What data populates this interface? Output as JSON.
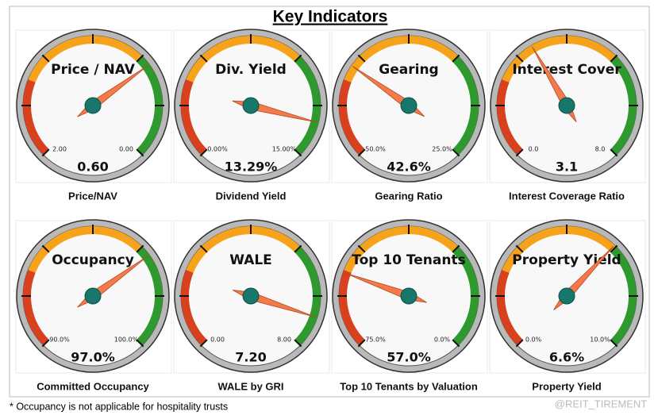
{
  "title": "Key Indicators",
  "footnote": "* Occupancy is not applicable for hospitality trusts",
  "watermark": "@REIT_TIREMENT",
  "chart_data": [
    {
      "type": "gauge",
      "title": "Price / NAV",
      "caption": "Price/NAV",
      "value": 0.6,
      "value_label": "0.60",
      "ylim": [
        2,
        0
      ],
      "yticks": [
        {
          "value": 2,
          "label": "2.00"
        },
        {
          "value": 0,
          "label": "0.00"
        }
      ],
      "color": "#f47a4c"
    },
    {
      "type": "gauge",
      "title": "Div. Yield",
      "caption": "Dividend Yield",
      "value": 13.29,
      "value_label": "13.29%",
      "ylim": [
        0,
        15
      ],
      "yticks": [
        {
          "value": 0,
          "label": "0.00%"
        },
        {
          "value": 15,
          "label": "15.00%"
        }
      ],
      "color": "#f47a4c"
    },
    {
      "type": "gauge",
      "title": "Gearing",
      "caption": "Gearing Ratio",
      "value": 42.6,
      "value_label": "42.6%",
      "ylim": [
        50,
        25
      ],
      "yticks": [
        {
          "value": 50,
          "label": "50.0%"
        },
        {
          "value": 25,
          "label": "25.0%"
        }
      ],
      "color": "#f47a4c"
    },
    {
      "type": "gauge",
      "title": "Interest Cover",
      "caption": "Interest Coverage Ratio",
      "value": 3.1,
      "value_label": "3.1",
      "ylim": [
        0,
        8
      ],
      "yticks": [
        {
          "value": 0,
          "label": "0.0"
        },
        {
          "value": 8,
          "label": "8.0"
        }
      ],
      "color": "#f47a4c"
    },
    {
      "type": "gauge",
      "title": "Occupancy",
      "caption": "Committed Occupancy",
      "value": 97,
      "value_label": "97.0%",
      "ylim": [
        90,
        100
      ],
      "yticks": [
        {
          "value": 90,
          "label": "90.0%"
        },
        {
          "value": 100,
          "label": "100.0%"
        }
      ],
      "color": "#f47a4c"
    },
    {
      "type": "gauge",
      "title": "WALE",
      "caption": "WALE by GRI",
      "value": 7.2,
      "value_label": "7.20",
      "ylim": [
        0,
        8
      ],
      "yticks": [
        {
          "value": 0,
          "label": "0.00"
        },
        {
          "value": 8,
          "label": "8.00"
        }
      ],
      "color": "#f47a4c"
    },
    {
      "type": "gauge",
      "title": "Top 10 Tenants",
      "caption": "Top 10 Tenants by Valuation",
      "value": 57,
      "value_label": "57.0%",
      "ylim": [
        75,
        0
      ],
      "yticks": [
        {
          "value": 75,
          "label": "75.0%"
        },
        {
          "value": 0,
          "label": "0.0%"
        }
      ],
      "color": "#f47a4c"
    },
    {
      "type": "gauge",
      "title": "Property Yield",
      "caption": "Property Yield",
      "value": 6.6,
      "value_label": "6.6%",
      "ylim": [
        0,
        10
      ],
      "yticks": [
        {
          "value": 0,
          "label": "0.0%"
        },
        {
          "value": 10,
          "label": "10.0%"
        }
      ],
      "color": "#f47a4c"
    }
  ]
}
